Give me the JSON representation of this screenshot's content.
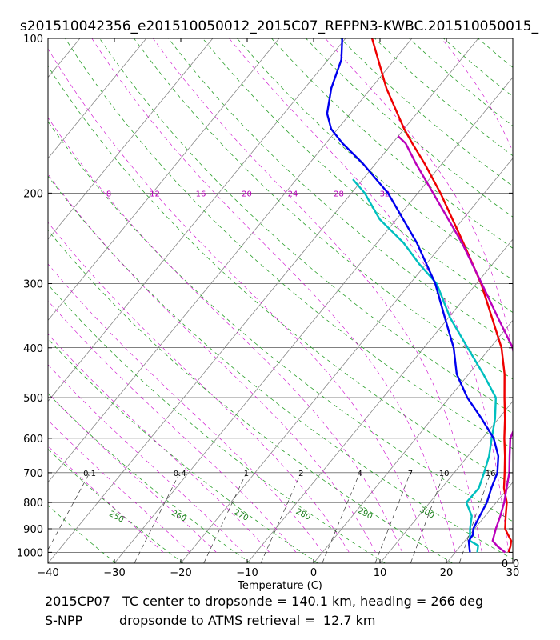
{
  "chart_data": {
    "type": "line",
    "subtype": "skew-T log-p diagram",
    "title": "s201510042356_e201510050012_2015C07_REPPN3-KWBC.201510050015_",
    "xlabel": "Temperature (C)",
    "ylabel": "",
    "xlim": [
      -40,
      30
    ],
    "ylim_pressure_hPa": [
      1050,
      100
    ],
    "x_ticks": [
      "−40",
      "−30",
      "−20",
      "−10",
      "0",
      "10",
      "20",
      "30"
    ],
    "x_tick_values": [
      -40,
      -30,
      -20,
      -10,
      0,
      10,
      20,
      30
    ],
    "y_ticks": [
      "100",
      "200",
      "300",
      "400",
      "500",
      "600",
      "700",
      "800",
      "900",
      "1000"
    ],
    "y_tick_values": [
      100,
      200,
      300,
      400,
      500,
      600,
      700,
      800,
      900,
      1000
    ],
    "isotherm_spacing_C": 10,
    "dry_adiabats_K": [
      250,
      260,
      270,
      280,
      290,
      300
    ],
    "dry_adiabat_labels": [
      "250",
      "260",
      "270",
      "280",
      "290",
      "300"
    ],
    "mixing_ratio_labels_700": [
      "0.1",
      "0.4",
      "1",
      "2",
      "4",
      "7",
      "10",
      "16"
    ],
    "mixing_ratio_values_700": [
      0.1,
      0.4,
      1,
      2,
      4,
      7,
      10,
      16
    ],
    "moist_adiabat_labels_200": [
      "8",
      "12",
      "16",
      "20",
      "24",
      "28",
      "32"
    ],
    "moist_adiabat_values_200": [
      8,
      12,
      16,
      20,
      24,
      28,
      32
    ],
    "corner_labels": [
      "0",
      "0"
    ],
    "series": [
      {
        "name": "temperature",
        "color": "#ee0000",
        "points": [
          [
            1000,
            28.0
          ],
          [
            975,
            27.6
          ],
          [
            950,
            27.0
          ],
          [
            925,
            25.8
          ],
          [
            900,
            24.6
          ],
          [
            850,
            23.1
          ],
          [
            800,
            21.6
          ],
          [
            750,
            19.4
          ],
          [
            700,
            17.6
          ],
          [
            650,
            15.6
          ],
          [
            600,
            13.3
          ],
          [
            550,
            11.0
          ],
          [
            500,
            8.3
          ],
          [
            450,
            5.4
          ],
          [
            400,
            1.7
          ],
          [
            350,
            -3.4
          ],
          [
            300,
            -9.3
          ],
          [
            250,
            -17.0
          ],
          [
            200,
            -26.6
          ],
          [
            175,
            -32.7
          ],
          [
            160,
            -37.0
          ],
          [
            150,
            -40.0
          ],
          [
            125,
            -47.7
          ],
          [
            100,
            -56.0
          ]
        ]
      },
      {
        "name": "dewpoint",
        "color": "#00bfbf",
        "points": [
          [
            1000,
            23.3
          ],
          [
            970,
            22.6
          ],
          [
            950,
            20.8
          ],
          [
            900,
            19.3
          ],
          [
            850,
            18.0
          ],
          [
            800,
            15.5
          ],
          [
            750,
            15.6
          ],
          [
            700,
            14.5
          ],
          [
            650,
            13.2
          ],
          [
            600,
            11.4
          ],
          [
            550,
            9.5
          ],
          [
            500,
            7.0
          ],
          [
            450,
            2.2
          ],
          [
            400,
            -3.4
          ],
          [
            350,
            -9.7
          ],
          [
            300,
            -16.0
          ],
          [
            275,
            -21.0
          ],
          [
            250,
            -26.0
          ],
          [
            225,
            -32.5
          ],
          [
            200,
            -38.0
          ],
          [
            188,
            -41.5
          ]
        ]
      },
      {
        "name": "dropsonde temperature",
        "color": "#0000ee",
        "points": [
          [
            1000,
            22.2
          ],
          [
            975,
            21.4
          ],
          [
            950,
            20.6
          ],
          [
            925,
            20.5
          ],
          [
            900,
            19.8
          ],
          [
            850,
            19.2
          ],
          [
            800,
            18.6
          ],
          [
            750,
            17.5
          ],
          [
            700,
            16.5
          ],
          [
            650,
            14.6
          ],
          [
            600,
            11.7
          ],
          [
            550,
            7.5
          ],
          [
            500,
            2.7
          ],
          [
            450,
            -1.8
          ],
          [
            400,
            -5.5
          ],
          [
            350,
            -10.5
          ],
          [
            300,
            -16.2
          ],
          [
            250,
            -24.0
          ],
          [
            200,
            -34.5
          ],
          [
            175,
            -42.0
          ],
          [
            160,
            -47.5
          ],
          [
            150,
            -51.0
          ],
          [
            140,
            -53.5
          ],
          [
            125,
            -56.0
          ],
          [
            110,
            -58.0
          ],
          [
            100,
            -60.5
          ]
        ]
      },
      {
        "name": "retrieval temperature",
        "color": "#bb00bb",
        "points": [
          [
            1000,
            27.5
          ],
          [
            975,
            25.7
          ],
          [
            950,
            24.2
          ],
          [
            900,
            23.2
          ],
          [
            850,
            22.3
          ],
          [
            800,
            21.2
          ],
          [
            750,
            19.8
          ],
          [
            700,
            18.3
          ],
          [
            650,
            16.3
          ],
          [
            600,
            14.2
          ],
          [
            550,
            13.0
          ],
          [
            500,
            11.2
          ],
          [
            450,
            7.7
          ],
          [
            400,
            3.4
          ],
          [
            350,
            -2.5
          ],
          [
            300,
            -9.2
          ],
          [
            250,
            -17.2
          ],
          [
            200,
            -27.7
          ],
          [
            175,
            -34.0
          ],
          [
            160,
            -38.0
          ],
          [
            155,
            -40.0
          ]
        ]
      }
    ]
  },
  "footer": {
    "line1": "2015CP07   TC center to dropsonde = 140.1 km, heading = 266 deg",
    "line2": "S-NPP         dropsonde to ATMS retrieval =  12.7 km"
  }
}
